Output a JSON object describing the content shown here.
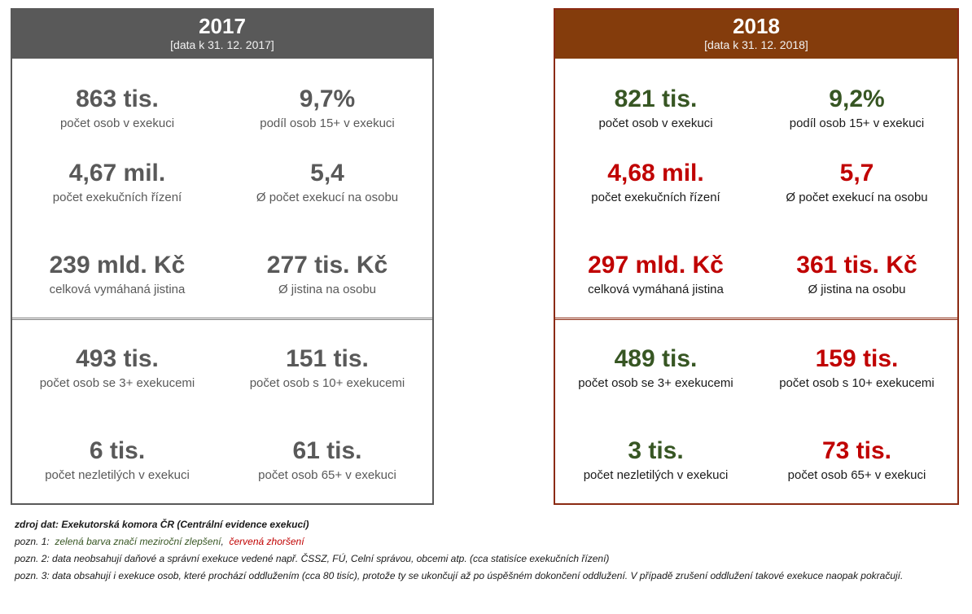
{
  "panels": {
    "y2017": {
      "year": "2017",
      "asof": "[data k 31. 12. 2017]",
      "stats": [
        {
          "value": "863 tis.",
          "label": "počet osob v exekuci"
        },
        {
          "value": "9,7%",
          "label": "podíl osob 15+ v exekuci"
        },
        {
          "value": "4,67 mil.",
          "label": "počet exekučních řízení"
        },
        {
          "value": "5,4",
          "label": "Ø počet exekucí na osobu"
        },
        {
          "value": "239 mld. Kč",
          "label": "celková vymáhaná jistina"
        },
        {
          "value": "277 tis. Kč",
          "label": "Ø jistina na osobu"
        },
        {
          "value": "493 tis.",
          "label": "počet osob se 3+ exekucemi"
        },
        {
          "value": "151 tis.",
          "label": "počet osob s 10+ exekucemi"
        },
        {
          "value": "6 tis.",
          "label": "počet nezletilých v exekuci"
        },
        {
          "value": "61 tis.",
          "label": "počet osob 65+ v exekuci"
        }
      ]
    },
    "y2018": {
      "year": "2018",
      "asof": "[data k 31. 12. 2018]",
      "stats": [
        {
          "value": "821 tis.",
          "label": "počet osob v exekuci",
          "trend": "green"
        },
        {
          "value": "9,2%",
          "label": "podíl osob 15+ v exekuci",
          "trend": "green"
        },
        {
          "value": "4,68 mil.",
          "label": "počet exekučních řízení",
          "trend": "red"
        },
        {
          "value": "5,7",
          "label": "Ø počet exekucí na osobu",
          "trend": "red"
        },
        {
          "value": "297 mld. Kč",
          "label": "celková vymáhaná jistina",
          "trend": "red"
        },
        {
          "value": "361 tis. Kč",
          "label": "Ø jistina na osobu",
          "trend": "red"
        },
        {
          "value": "489 tis.",
          "label": "počet osob se 3+ exekucemi",
          "trend": "green"
        },
        {
          "value": "159 tis.",
          "label": "počet osob s 10+ exekucemi",
          "trend": "red"
        },
        {
          "value": "3 tis.",
          "label": "počet nezletilých v exekuci",
          "trend": "green"
        },
        {
          "value": "73 tis.",
          "label": "počet osob 65+ v exekuci",
          "trend": "red"
        }
      ]
    }
  },
  "notes": {
    "source": "zdroj dat: Exekutorská komora ČR (Centrální evidence exekucí)",
    "note1_prefix": "pozn. 1:",
    "note1_green": "zelená barva značí meziroční zlepšení",
    "note1_sep": ",",
    "note1_red": "červená zhoršení",
    "note2": "pozn. 2: data neobsahují daňové a správní exekuce vedené např. ČSSZ, FÚ, Celní správou, obcemi atp. (cca statisíce exekučních řízení)",
    "note3": "pozn. 3: data obsahují i exekuce osob, které prochází oddlužením (cca 80 tisíc), protože ty se ukončují až po úspěšném dokončení oddlužení. V případě zrušení oddlužení takové exekuce naopak pokračují."
  },
  "colors": {
    "grey": "#595959",
    "brown": "#843c0c",
    "green": "#375623",
    "red": "#c00000"
  }
}
